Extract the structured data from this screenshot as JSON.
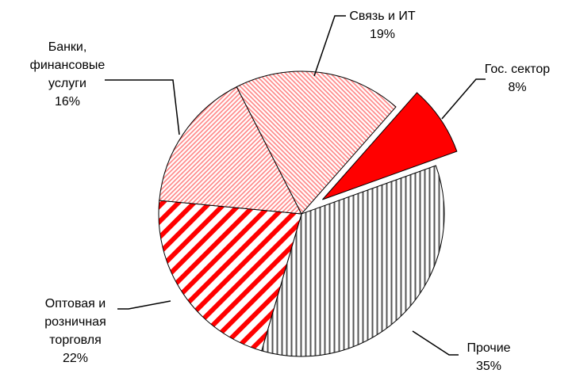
{
  "chart_data": {
    "type": "pie",
    "categories": [
      "Гос. сектор",
      "Прочие",
      "Оптовая и розничная торговля",
      "Банки, финансовые услуги",
      "Связь и ИТ"
    ],
    "values": [
      8,
      35,
      22,
      16,
      19
    ],
    "value_labels": [
      "8%",
      "35%",
      "22%",
      "16%",
      "19%"
    ],
    "colors": [
      "#ff0000",
      "#555555",
      "#ff0000",
      "#ff8080",
      "#ff8080"
    ]
  }
}
